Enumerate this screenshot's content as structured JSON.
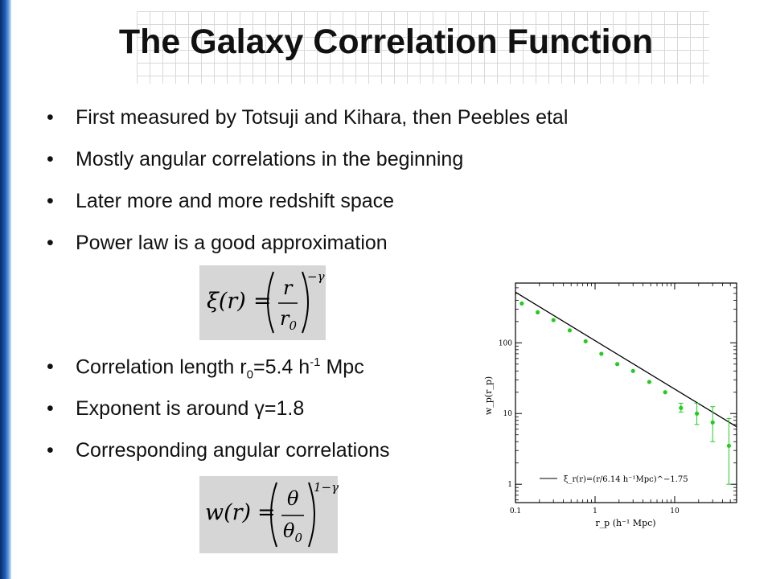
{
  "slide": {
    "title": "The Galaxy Correlation Function",
    "bullets": [
      "First measured by Totsuji and Kihara, then Peebles etal",
      "Mostly angular correlations in the beginning",
      "Later more and more redshift space",
      "Power law is a good approximation"
    ],
    "corr_length": {
      "pre": "Correlation length r",
      "sub": "0",
      "mid": "=5.4 h",
      "sup": "-1",
      "post": " Mpc"
    },
    "exponent": {
      "pre": "Exponent is around ",
      "gamma": "γ",
      "post": "=1.8"
    },
    "angular": "Corresponding angular correlations",
    "bullet_symbol": "•",
    "equation1": {
      "lhs": "ξ(r)",
      "eq": "=",
      "num": "r",
      "den_main": "r",
      "den_sub": "0",
      "exp": "−γ"
    },
    "equation2": {
      "lhs": "w(r)",
      "eq": "=",
      "num": "θ",
      "den_main": "θ",
      "den_sub": "0",
      "exp": "1−γ"
    }
  },
  "chart_data": {
    "type": "scatter",
    "log_x": true,
    "log_y": true,
    "xlim": [
      0.1,
      60
    ],
    "ylim": [
      0.55,
      700
    ],
    "xticks": [
      "0.1",
      "1",
      "10"
    ],
    "yticks": [
      "1",
      "10",
      "100"
    ],
    "xlabel": "r_p (h⁻¹ Mpc)",
    "ylabel": "w_p(r_p)",
    "legend": "ξ_r(r)=(r/6.14 h⁻¹Mpc)^−1.75",
    "fit_line": {
      "x": [
        0.1,
        60
      ],
      "y": [
        520,
        6.5
      ]
    },
    "series": [
      {
        "x": [
          0.12,
          0.19,
          0.3,
          0.48,
          0.76,
          1.2,
          1.9,
          3.0,
          4.8,
          7.6,
          12.0,
          19.0,
          30.0,
          48.0
        ],
        "y": [
          360,
          270,
          210,
          150,
          105,
          70,
          50,
          40,
          28,
          20,
          12,
          10,
          7.5,
          3.5
        ],
        "err_low": [
          0,
          0,
          0,
          0,
          0,
          0,
          0,
          0,
          0,
          0,
          1.5,
          3,
          3.5,
          2.5
        ],
        "err_high": [
          0,
          0,
          0,
          0,
          0,
          0,
          0,
          0,
          0,
          0,
          2,
          4,
          5,
          5
        ]
      }
    ],
    "colors": {
      "points": "#22cc22",
      "line": "#000000"
    }
  }
}
